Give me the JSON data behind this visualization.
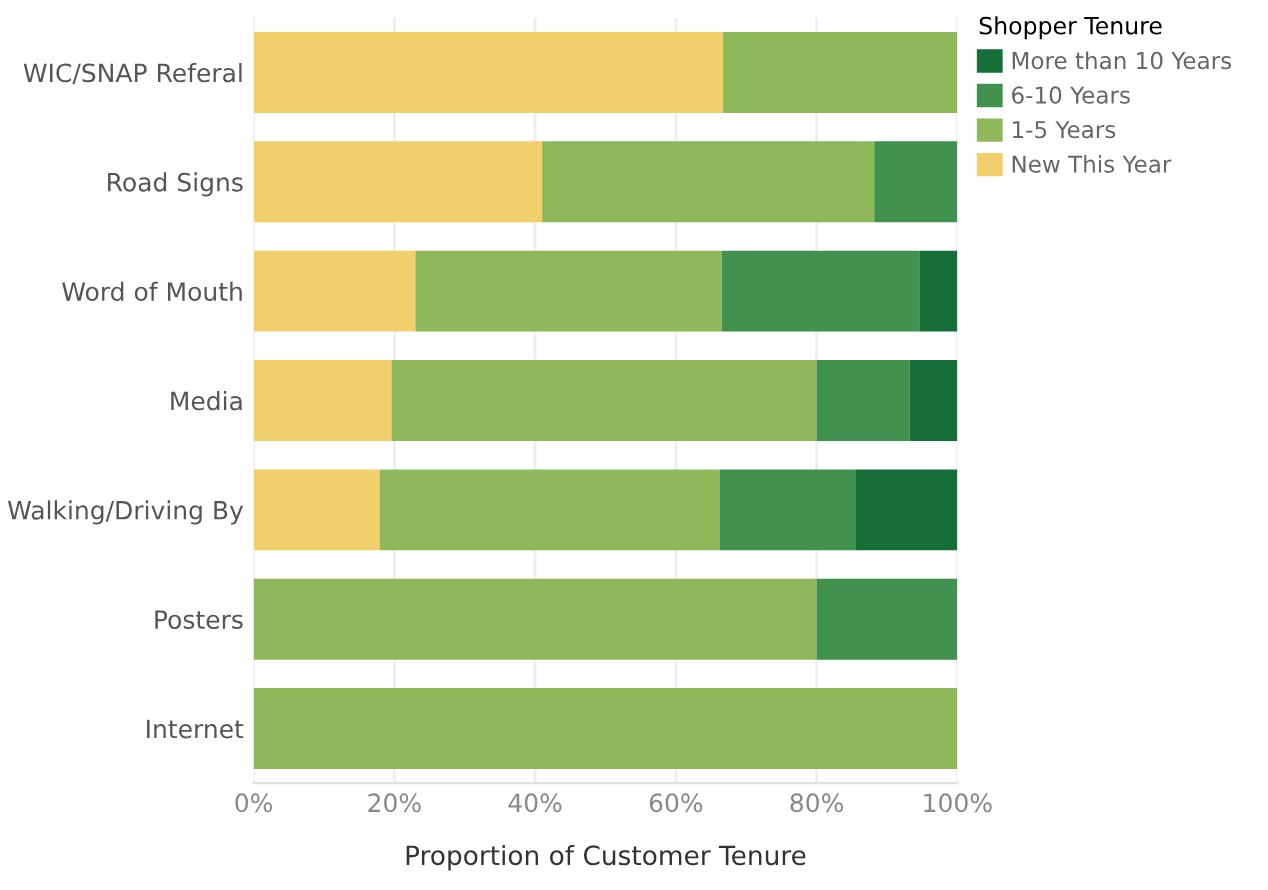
{
  "chart_data": {
    "type": "bar",
    "orientation": "horizontal",
    "stacked": true,
    "categories": [
      "WIC/SNAP Referal",
      "Road Signs",
      "Word of Mouth",
      "Media",
      "Walking/Driving By",
      "Posters",
      "Internet"
    ],
    "series": [
      {
        "name": "New This Year",
        "color": "#f1cf6a",
        "values": [
          66.7,
          41,
          23,
          19.6,
          17.9,
          0,
          0
        ]
      },
      {
        "name": "1-5 Years",
        "color": "#8fb85b",
        "values": [
          33.3,
          47.2,
          43.5,
          60.4,
          48.3,
          80,
          100
        ]
      },
      {
        "name": "6-10 Years",
        "color": "#42924f",
        "values": [
          0,
          11.8,
          28.1,
          13.2,
          19.4,
          20,
          0
        ]
      },
      {
        "name": "More than 10 Years",
        "color": "#166e38",
        "values": [
          0,
          0,
          5.4,
          6.8,
          14.4,
          0,
          0
        ]
      }
    ],
    "xlabel": "Proportion of Customer Tenure",
    "legend_title": "Shopper Tenure",
    "xlim": [
      0,
      100
    ],
    "xticks": [
      {
        "value": 0,
        "label": "0%"
      },
      {
        "value": 20,
        "label": "20%"
      },
      {
        "value": 40,
        "label": "40%"
      },
      {
        "value": 60,
        "label": "60%"
      },
      {
        "value": 80,
        "label": "80%"
      },
      {
        "value": 100,
        "label": "100%"
      }
    ],
    "grid": "x",
    "legend": "top right"
  }
}
